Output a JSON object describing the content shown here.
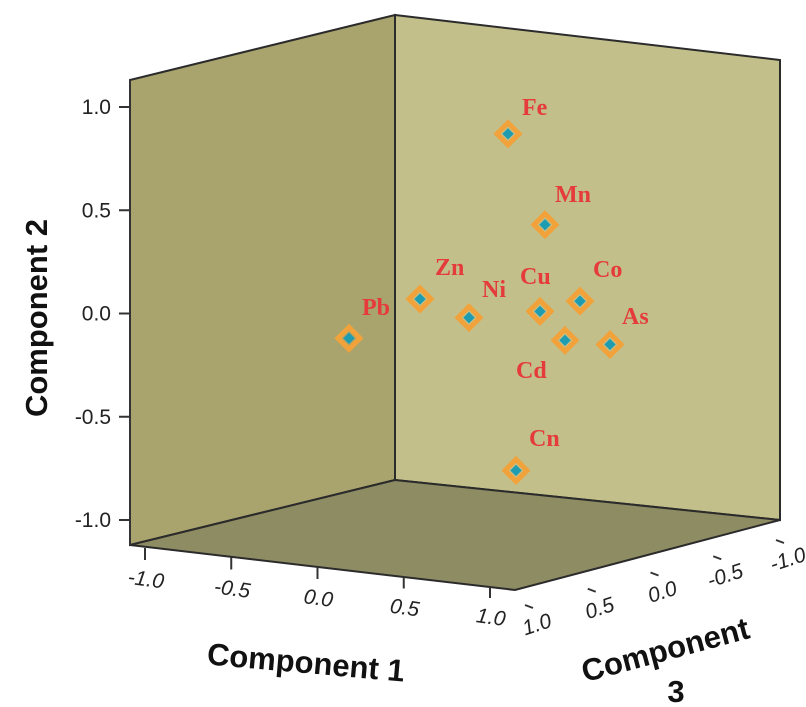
{
  "chart_data": {
    "type": "scatter",
    "title": "",
    "xlabel": "Component 1",
    "ylabel": "Component 2",
    "zlabel": [
      "Component",
      "3"
    ],
    "ylim": [
      -1.0,
      1.0
    ],
    "xlim": [
      -1.0,
      1.0
    ],
    "zlim": [
      -1.0,
      1.0
    ],
    "y_ticks": [
      "1.0",
      "0.5",
      "0.0",
      "-0.5",
      "-1.0"
    ],
    "y_tick_values": [
      1.0,
      0.5,
      0.0,
      -0.5,
      -1.0
    ],
    "x_ticks": [
      "-1.0",
      "-0.5",
      "0.0",
      "0.5",
      "1.0"
    ],
    "z_ticks": [
      "1.0",
      "0.5",
      "0.0",
      "-0.5",
      "-1.0"
    ],
    "grid": false,
    "colors": {
      "back_wall": "#c2bf8a",
      "left_wall": "#a9a46e",
      "floor": "#8e8c63",
      "marker_outer": "#f2a23a",
      "marker_inner": "#1f9cb0",
      "label": "#e53b3b"
    },
    "points": [
      {
        "label": "Fe",
        "y": 0.87
      },
      {
        "label": "Mn",
        "y": 0.43
      },
      {
        "label": "Zn",
        "y": 0.07
      },
      {
        "label": "Ni",
        "y": -0.02
      },
      {
        "label": "Cu",
        "y": 0.01
      },
      {
        "label": "Co",
        "y": 0.06
      },
      {
        "label": "Pb",
        "y": -0.12
      },
      {
        "label": "As",
        "y": -0.15
      },
      {
        "label": "Cd",
        "y": -0.13
      },
      {
        "label": "Cn",
        "y": -0.76
      }
    ]
  }
}
